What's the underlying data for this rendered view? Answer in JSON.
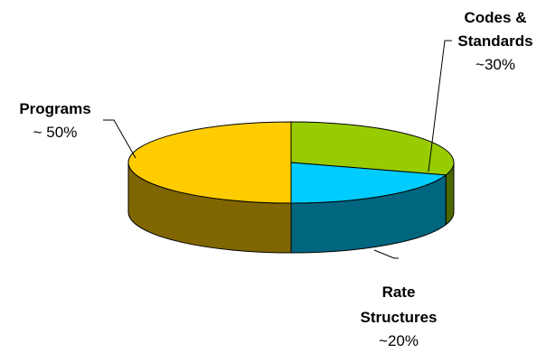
{
  "chart_data": {
    "type": "pie",
    "style": "3d",
    "slices": [
      {
        "key": "programs",
        "label": [
          "Programs"
        ],
        "value_text": "~ 50%",
        "value": 50,
        "color": "#FFCC00",
        "side_color": "#806600"
      },
      {
        "key": "codes",
        "label": [
          "Codes &",
          "Standards"
        ],
        "value_text": "~30%",
        "value": 30,
        "color": "#99CC00",
        "side_color": "#4C6600"
      },
      {
        "key": "rate",
        "label": [
          "Rate",
          "Structures"
        ],
        "value_text": "~20%",
        "value": 20,
        "color": "#00CCFF",
        "side_color": "#006680"
      }
    ]
  }
}
